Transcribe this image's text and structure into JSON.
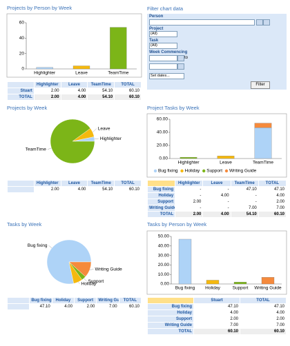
{
  "chart_data": [
    {
      "type": "bar",
      "title": "Projects by Person by Week",
      "categories": [
        "Highlighter",
        "Leave",
        "TeamTime"
      ],
      "values": [
        2,
        4,
        54.1
      ],
      "colors": [
        "#aed3f7",
        "#f5b90f",
        "#7cb518"
      ],
      "ylim": [
        0,
        60
      ],
      "yticks": [
        0,
        20,
        40,
        60
      ]
    },
    {
      "type": "pie",
      "title": "Projects by Week",
      "categories": [
        "Highlighter",
        "Leave",
        "TeamTime"
      ],
      "values": [
        2,
        4,
        54.1
      ],
      "colors": [
        "#aed3f7",
        "#f5b90f",
        "#7cb518"
      ]
    },
    {
      "type": "bar",
      "stacked": true,
      "title": "Project Tasks by Week",
      "categories": [
        "Highlighter",
        "Leave",
        "TeamTime"
      ],
      "series": [
        {
          "name": "Bug fixing",
          "color": "#aed3f7",
          "values": [
            null,
            null,
            47.1
          ]
        },
        {
          "name": "Holiday",
          "color": "#f5b90f",
          "values": [
            null,
            4,
            null
          ]
        },
        {
          "name": "Support",
          "color": "#7cb518",
          "values": [
            2,
            null,
            null
          ]
        },
        {
          "name": "Writing Guide",
          "color": "#f58a3c",
          "values": [
            null,
            null,
            7
          ]
        }
      ],
      "ylim": [
        0,
        60
      ],
      "yticks": [
        {
          "value": 0,
          "label": "0.00"
        },
        {
          "value": 20,
          "label": "20.00"
        },
        {
          "value": 40,
          "label": "40.00"
        },
        {
          "value": 60,
          "label": "60.00"
        }
      ]
    },
    {
      "type": "pie",
      "title": "Tasks by Week",
      "categories": [
        "Bug fixing",
        "Holiday",
        "Support",
        "Writing Guide"
      ],
      "values": [
        47.1,
        4,
        2,
        7
      ],
      "colors": [
        "#aed3f7",
        "#f5b90f",
        "#7cb518",
        "#f58a3c"
      ]
    },
    {
      "type": "bar",
      "title": "Tasks by Person by Week",
      "categories": [
        "Bug fixing",
        "Holiday",
        "Support",
        "Writing Guide"
      ],
      "values": [
        47.1,
        4,
        2,
        7
      ],
      "colors": [
        "#aed3f7",
        "#f5b90f",
        "#7cb518",
        "#f58a3c"
      ],
      "ylim": [
        0,
        50
      ],
      "yticks": [
        {
          "value": 0,
          "label": "0.00"
        },
        {
          "value": 10,
          "label": "10.00"
        },
        {
          "value": 20,
          "label": "20.00"
        },
        {
          "value": 30,
          "label": "30.00"
        },
        {
          "value": 40,
          "label": "40.00"
        },
        {
          "value": 50,
          "label": "50.00"
        }
      ]
    }
  ],
  "tables": [
    {
      "header": [
        null,
        "Highlighter",
        "Leave",
        "TeamTime",
        "TOTAL"
      ],
      "rows": [
        [
          "Stuart",
          "2.00",
          "4.00",
          "54.10",
          "60.10"
        ],
        [
          "TOTAL",
          "2.00",
          "4.00",
          "54.10",
          "60.10"
        ]
      ]
    },
    {
      "header": [
        null,
        "Highlighter",
        "Leave",
        "TeamTime",
        "TOTAL"
      ],
      "rows": [
        [
          null,
          "2.00",
          "4.00",
          "54.10",
          "60.10"
        ]
      ]
    },
    {
      "header": [
        null,
        "Highlighter",
        "Leave",
        "TeamTime",
        "TOTAL"
      ],
      "rows": [
        [
          "Bug fixing",
          "-",
          "-",
          "47.10",
          "47.10"
        ],
        [
          "Holiday",
          "-",
          "4.00",
          "-",
          "4.00"
        ],
        [
          "Support",
          "2.00",
          "-",
          "-",
          "2.00"
        ],
        [
          "Writing Guide",
          "-",
          "-",
          "7.00",
          "7.00"
        ],
        [
          "TOTAL",
          "2.00",
          "4.00",
          "54.10",
          "60.10"
        ]
      ]
    },
    {
      "header": [
        null,
        "Bug fixing",
        "Holiday",
        "Support",
        "Writing Guide",
        "TOTAL"
      ],
      "rows": [
        [
          null,
          "47.10",
          "4.00",
          "2.00",
          "7.00",
          "60.10"
        ]
      ]
    },
    {
      "header": [
        null,
        "Stuart",
        "TOTAL"
      ],
      "rows": [
        [
          "Bug fixing",
          "47.10",
          "47.10"
        ],
        [
          "Holiday",
          "4.00",
          "4.00"
        ],
        [
          "Support",
          "2.00",
          "2.00"
        ],
        [
          "Writing Guide",
          "7.00",
          "7.00"
        ],
        [
          "TOTAL",
          "60.10",
          "60.10"
        ]
      ]
    }
  ],
  "filter": {
    "title": "Filter chart data",
    "person_label": "Person",
    "project_label": "Project",
    "project_value": "(All)",
    "task_label": "Task",
    "task_value": "(All)",
    "week_label": "Week Commencing",
    "to_label": "to",
    "dates_value": "Set dates...",
    "button": "Filter"
  }
}
